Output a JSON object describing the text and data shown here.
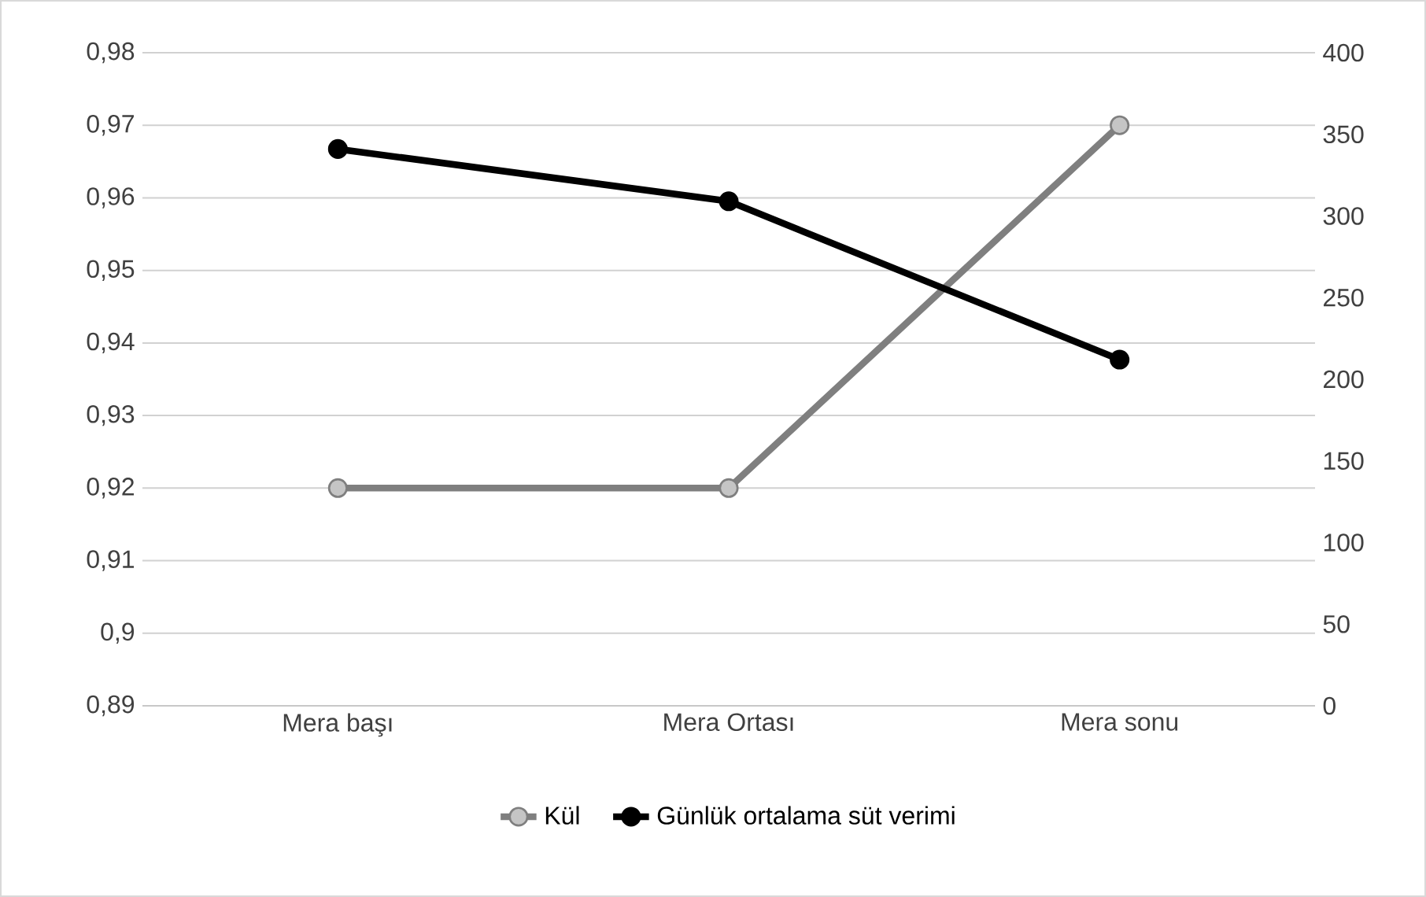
{
  "chart_data": {
    "type": "line",
    "categories": [
      "Mera başı",
      "Mera Ortası",
      "Mera sonu"
    ],
    "series": [
      {
        "name": "Kül",
        "color": "#7f7f7f",
        "values": [
          0.92,
          0.92,
          0.97
        ]
      },
      {
        "name": "Günlük ortalama süt verimi",
        "color": "#000000",
        "values": [
          341,
          309,
          212
        ],
        "axis": "y2"
      }
    ],
    "ylim": [
      0.89,
      0.98
    ],
    "yticks": [
      {
        "value": 0.89,
        "label": "0,89"
      },
      {
        "value": 0.9,
        "label": "0,9"
      },
      {
        "value": 0.91,
        "label": "0,91"
      },
      {
        "value": 0.92,
        "label": "0,92"
      },
      {
        "value": 0.93,
        "label": "0,93"
      },
      {
        "value": 0.94,
        "label": "0,94"
      },
      {
        "value": 0.95,
        "label": "0,95"
      },
      {
        "value": 0.96,
        "label": "0,96"
      },
      {
        "value": 0.97,
        "label": "0,97"
      },
      {
        "value": 0.98,
        "label": "0,98"
      }
    ],
    "y2lim": [
      0,
      400
    ],
    "y2ticks": [
      0,
      50,
      100,
      150,
      200,
      250,
      300,
      350,
      400
    ],
    "grid": "y",
    "legend": "bottom",
    "marker": "circle",
    "line_style": "solid"
  }
}
